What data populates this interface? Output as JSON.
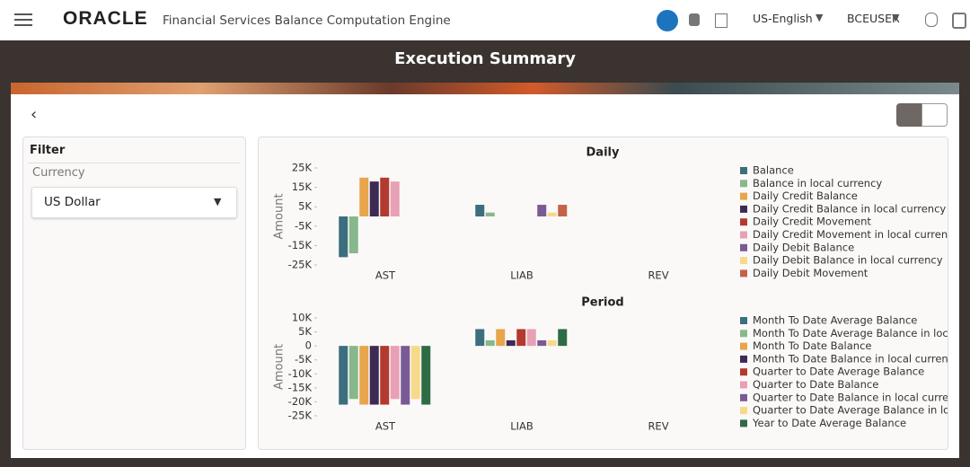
{
  "header": {
    "brand": "ORACLE",
    "app_title": "Financial Services Balance Computation Engine",
    "language": "US-English",
    "user": "BCEUSER"
  },
  "page": {
    "title": "Execution Summary"
  },
  "filter": {
    "title": "Filter",
    "label": "Currency",
    "value": "US Dollar"
  },
  "chart_data": [
    {
      "type": "bar",
      "title": "Daily",
      "y_label": "Amount",
      "grid": false,
      "categories": [
        "AST",
        "LIAB",
        "REV"
      ],
      "ylim": [
        -25000,
        25000
      ],
      "yticks": [
        {
          "value": 25000,
          "label": "25K"
        },
        {
          "value": 15000,
          "label": "15K"
        },
        {
          "value": 5000,
          "label": "5K"
        },
        {
          "value": -5000,
          "label": "-5K"
        },
        {
          "value": -15000,
          "label": "-15K"
        },
        {
          "value": -25000,
          "label": "-25K"
        }
      ],
      "series": [
        {
          "name": "Balance",
          "color": "#3b6e7e",
          "values": [
            -21000,
            6000,
            null
          ]
        },
        {
          "name": "Balance in local currency",
          "color": "#86b88c",
          "values": [
            -19000,
            2000,
            null
          ]
        },
        {
          "name": "Daily Credit Balance",
          "color": "#e8a54b",
          "values": [
            20000,
            null,
            null
          ]
        },
        {
          "name": "Daily Credit Balance in local currency",
          "color": "#3d2a55",
          "values": [
            18000,
            null,
            null
          ]
        },
        {
          "name": "Daily Credit Movement",
          "color": "#b33a2e",
          "values": [
            20000,
            null,
            null
          ]
        },
        {
          "name": "Daily Credit Movement in local currency",
          "color": "#e8a0b4",
          "values": [
            18000,
            null,
            null
          ]
        },
        {
          "name": "Daily Debit Balance",
          "color": "#7a5a95",
          "values": [
            null,
            6000,
            null
          ]
        },
        {
          "name": "Daily Debit Balance in local currency",
          "color": "#f7d98a",
          "values": [
            null,
            2000,
            null
          ]
        },
        {
          "name": "Daily Debit Movement",
          "color": "#c4624a",
          "values": [
            null,
            6000,
            null
          ]
        }
      ]
    },
    {
      "type": "bar",
      "title": "Period",
      "y_label": "Amount",
      "grid": false,
      "categories": [
        "AST",
        "LIAB",
        "REV"
      ],
      "ylim": [
        -25000,
        10000
      ],
      "yticks": [
        {
          "value": 10000,
          "label": "10K"
        },
        {
          "value": 5000,
          "label": "5K"
        },
        0,
        {
          "value": -5000,
          "label": "-5K"
        },
        {
          "value": -10000,
          "label": "-10K"
        },
        {
          "value": -15000,
          "label": "-15K"
        },
        {
          "value": -20000,
          "label": "-20K"
        },
        {
          "value": -25000,
          "label": "-25K"
        }
      ],
      "series": [
        {
          "name": "Month To Date Average Balance",
          "color": "#3b6e7e",
          "values": [
            -21000,
            6000,
            null
          ]
        },
        {
          "name": "Month To Date Average Balance in loc...",
          "color": "#86b88c",
          "values": [
            -19000,
            2000,
            null
          ]
        },
        {
          "name": "Month To Date Balance",
          "color": "#e8a54b",
          "values": [
            -21000,
            6000,
            null
          ]
        },
        {
          "name": "Month To Date Balance in local currency",
          "color": "#3d2a55",
          "values": [
            -21000,
            2000,
            null
          ]
        },
        {
          "name": "Quarter to Date Average Balance",
          "color": "#b33a2e",
          "values": [
            -21000,
            6000,
            null
          ]
        },
        {
          "name": "Quarter to Date Balance",
          "color": "#e8a0b4",
          "values": [
            -19000,
            6000,
            null
          ]
        },
        {
          "name": "Quarter to Date Balance in local curre...",
          "color": "#7a5a95",
          "values": [
            -21000,
            2000,
            null
          ]
        },
        {
          "name": "Quarter to Date Average Balance in lo...",
          "color": "#f7d98a",
          "values": [
            -19000,
            2000,
            null
          ]
        },
        {
          "name": "Year to Date Average Balance",
          "color": "#2f6b45",
          "values": [
            -21000,
            6000,
            null
          ]
        }
      ]
    }
  ]
}
